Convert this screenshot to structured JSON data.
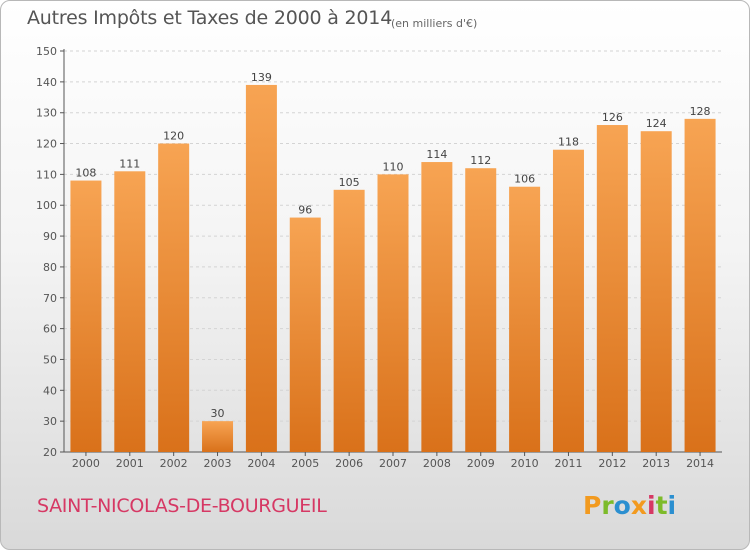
{
  "header": {
    "title": "Autres Impôts et Taxes de 2000 à 2014",
    "unit": "(en milliers d'€)"
  },
  "footer": {
    "commune": "SAINT-NICOLAS-DE-BOURGUEIL",
    "logo_text": "Proxiti",
    "logo_colors": [
      "#f29a1f",
      "#7dbb2a",
      "#2b8fd0",
      "#f29a1f",
      "#d63864",
      "#7dbb2a",
      "#2b8fd0"
    ]
  },
  "colors": {
    "bar_light": "#f7a453",
    "bar_dark": "#d9711a",
    "commune_color": "#d63864"
  },
  "chart_data": {
    "type": "bar",
    "title": "Autres Impôts et Taxes de 2000 à 2014",
    "subtitle": "(en milliers d'€)",
    "categories": [
      "2000",
      "2001",
      "2002",
      "2003",
      "2004",
      "2005",
      "2006",
      "2007",
      "2008",
      "2009",
      "2010",
      "2011",
      "2012",
      "2013",
      "2014"
    ],
    "values": [
      108,
      111,
      120,
      30,
      139,
      96,
      105,
      110,
      114,
      112,
      106,
      118,
      126,
      124,
      128
    ],
    "ylim": [
      20,
      150
    ],
    "yticks": [
      20,
      30,
      40,
      50,
      60,
      70,
      80,
      90,
      100,
      110,
      120,
      130,
      140,
      150
    ],
    "grid": true
  }
}
